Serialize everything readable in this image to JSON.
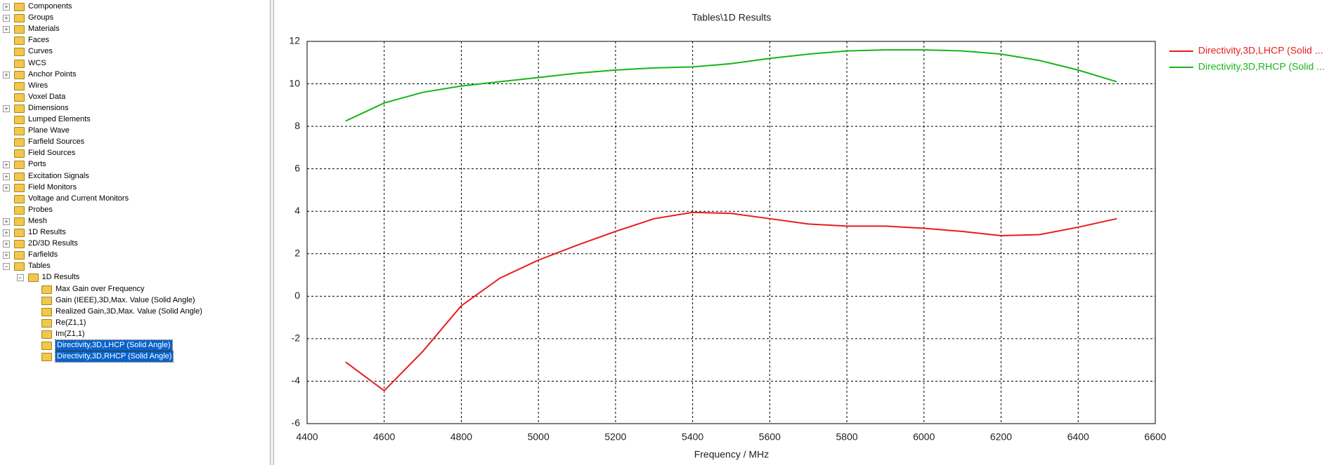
{
  "tree": {
    "items": [
      {
        "label": "Components",
        "collapsed": true
      },
      {
        "label": "Groups",
        "collapsed": true
      },
      {
        "label": "Materials",
        "collapsed": true
      },
      {
        "label": "Faces"
      },
      {
        "label": "Curves"
      },
      {
        "label": "WCS"
      },
      {
        "label": "Anchor Points",
        "collapsed": true
      },
      {
        "label": "Wires"
      },
      {
        "label": "Voxel Data"
      },
      {
        "label": "Dimensions",
        "collapsed": true
      },
      {
        "label": "Lumped Elements"
      },
      {
        "label": "Plane Wave"
      },
      {
        "label": "Farfield Sources"
      },
      {
        "label": "Field Sources"
      },
      {
        "label": "Ports",
        "collapsed": true
      },
      {
        "label": "Excitation Signals",
        "collapsed": true
      },
      {
        "label": "Field Monitors",
        "collapsed": true
      },
      {
        "label": "Voltage and Current Monitors"
      },
      {
        "label": "Probes"
      },
      {
        "label": "Mesh",
        "collapsed": true
      },
      {
        "label": "1D Results",
        "collapsed": true
      },
      {
        "label": "2D/3D Results",
        "collapsed": true
      },
      {
        "label": "Farfields",
        "collapsed": true
      },
      {
        "label": "Tables",
        "children": [
          {
            "label": "1D Results",
            "children": [
              {
                "label": "Max Gain over Frequency"
              },
              {
                "label": "Gain (IEEE),3D,Max. Value (Solid Angle)"
              },
              {
                "label": "Realized Gain,3D,Max. Value (Solid Angle)"
              },
              {
                "label": "Re(Z1,1)"
              },
              {
                "label": "Im(Z1,1)"
              },
              {
                "label": "Directivity,3D,LHCP (Solid Angle)",
                "selected": true
              },
              {
                "label": "Directivity,3D,RHCP (Solid Angle)",
                "selected": true
              }
            ]
          }
        ]
      }
    ]
  },
  "chart_data": {
    "type": "line",
    "title": "Tables\\1D Results",
    "x_label": "Frequency / MHz",
    "x": [
      4500,
      4600,
      4700,
      4800,
      4900,
      5000,
      5100,
      5200,
      5300,
      5400,
      5500,
      5600,
      5700,
      5800,
      5900,
      6000,
      6100,
      6200,
      6300,
      6400,
      6500
    ],
    "series": [
      {
        "name": "Directivity,3D,LHCP (Solid ...",
        "color": "#e81c1c",
        "values": [
          -3.1,
          -4.45,
          -2.6,
          -0.45,
          0.85,
          1.7,
          2.4,
          3.05,
          3.65,
          3.95,
          3.9,
          3.65,
          3.4,
          3.3,
          3.3,
          3.2,
          3.05,
          2.85,
          2.9,
          3.25,
          3.65
        ]
      },
      {
        "name": "Directivity,3D,RHCP (Solid ...",
        "color": "#18b418",
        "values": [
          8.25,
          9.1,
          9.6,
          9.9,
          10.1,
          10.3,
          10.5,
          10.65,
          10.75,
          10.8,
          10.95,
          11.2,
          11.4,
          11.55,
          11.6,
          11.6,
          11.55,
          11.4,
          11.1,
          10.65,
          10.1
        ]
      }
    ],
    "xlim": [
      4400,
      6600
    ],
    "xticks": [
      4400,
      4600,
      4800,
      5000,
      5200,
      5400,
      5600,
      5800,
      6000,
      6200,
      6400,
      6600
    ],
    "ylim": [
      -6,
      12
    ],
    "yticks": [
      -6,
      -4,
      -2,
      0,
      2,
      4,
      6,
      8,
      10,
      12
    ],
    "grid": true,
    "legend": "right"
  }
}
